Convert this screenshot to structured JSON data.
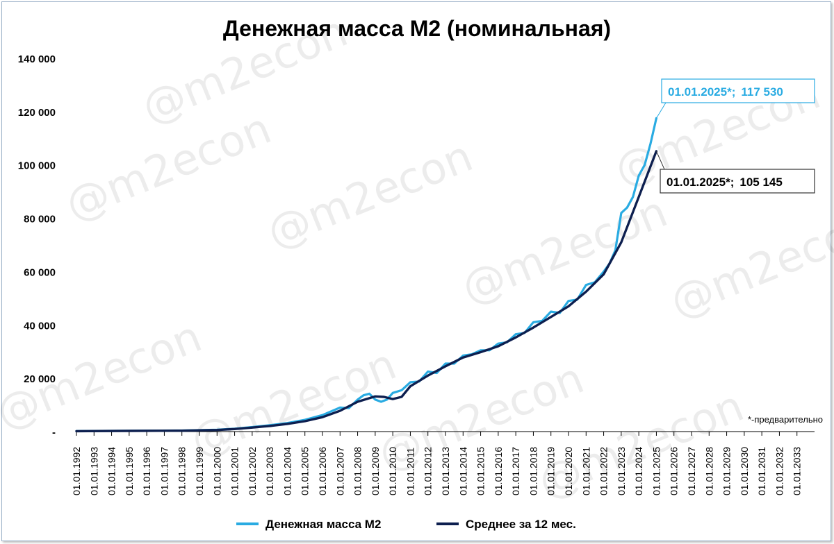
{
  "chart_data": {
    "type": "line",
    "title": "Денежная масса М2 (номинальная)",
    "xlabel": "",
    "ylabel": "",
    "ylim": [
      0,
      140000
    ],
    "y_ticks": [
      "-",
      "20 000",
      "40 000",
      "60 000",
      "80 000",
      "100 000",
      "120 000",
      "140 000"
    ],
    "y_tick_values": [
      0,
      20000,
      40000,
      60000,
      80000,
      100000,
      120000,
      140000
    ],
    "x_ticks": [
      "01.01.1992",
      "01.01.1993",
      "01.01.1994",
      "01.01.1995",
      "01.01.1996",
      "01.01.1997",
      "01.01.1998",
      "01.01.1999",
      "01.01.2000",
      "01.01.2001",
      "01.01.2002",
      "01.01.2003",
      "01.01.2004",
      "01.01.2005",
      "01.01.2006",
      "01.01.2007",
      "01.01.2008",
      "01.01.2009",
      "01.01.2010",
      "01.01.2011",
      "01.01.2012",
      "01.01.2013",
      "01.01.2014",
      "01.01.2015",
      "01.01.2016",
      "01.01.2017",
      "01.01.2018",
      "01.01.2019",
      "01.01.2020",
      "01.01.2021",
      "01.01.2022",
      "01.01.2023",
      "01.01.2024",
      "01.01.2025",
      "01.01.2026",
      "01.01.2027",
      "01.01.2028",
      "01.01.2029",
      "01.01.2030",
      "01.01.2031",
      "01.01.2032",
      "01.01.2033"
    ],
    "x_range": [
      "01.01.1992",
      "01.01.2034"
    ],
    "grid": false,
    "legend_position": "bottom",
    "series": [
      {
        "name": "Денежная масса М2",
        "color": "#29abe2",
        "x": [
          "01.01.1992",
          "01.01.1995",
          "01.01.1998",
          "01.01.2000",
          "01.01.2001",
          "01.01.2002",
          "01.01.2003",
          "01.01.2004",
          "01.01.2005",
          "01.01.2006",
          "01.01.2007",
          "01.01.2007",
          "01.01.2008",
          "01.01.2008",
          "01.01.2008",
          "01.01.2009",
          "01.01.2009",
          "01.01.2009",
          "01.01.2010",
          "01.01.2010",
          "01.01.2011",
          "01.01.2011",
          "01.01.2012",
          "01.01.2012",
          "01.01.2013",
          "01.01.2013",
          "01.01.2014",
          "01.01.2014",
          "01.01.2015",
          "01.01.2015",
          "01.01.2016",
          "01.01.2016",
          "01.01.2017",
          "01.01.2017",
          "01.01.2018",
          "01.01.2018",
          "01.01.2019",
          "01.01.2019",
          "01.01.2020",
          "01.01.2020",
          "01.01.2021",
          "01.01.2021",
          "01.01.2022",
          "01.01.2022",
          "01.01.2022",
          "01.01.2023",
          "01.01.2023",
          "01.01.2023",
          "01.01.2024",
          "01.01.2024",
          "01.01.2024",
          "01.01.2025"
        ],
        "values": [
          200,
          300,
          400,
          700,
          1100,
          1700,
          2400,
          3200,
          4400,
          6200,
          9000,
          8800,
          12000,
          13600,
          14200,
          12000,
          11200,
          12000,
          14500,
          15500,
          18500,
          18800,
          22500,
          22000,
          25500,
          25500,
          28500,
          29000,
          30500,
          30500,
          33000,
          33500,
          36500,
          37000,
          41000,
          41500,
          45000,
          44500,
          49000,
          49500,
          55000,
          56000,
          60000,
          63000,
          68000,
          82000,
          84000,
          88000,
          96000,
          100000,
          108000,
          117530
        ]
      },
      {
        "name": "Среднее за 12 мес.",
        "color": "#0d1f4f",
        "x": [
          "01.01.1992",
          "01.01.1995",
          "01.01.1998",
          "01.01.2000",
          "01.01.2001",
          "01.01.2002",
          "01.01.2003",
          "01.01.2004",
          "01.01.2005",
          "01.01.2006",
          "01.01.2007",
          "01.01.2008",
          "01.01.2009",
          "01.01.2009",
          "01.01.2010",
          "01.01.2010",
          "01.01.2011",
          "01.01.2012",
          "01.01.2013",
          "01.01.2014",
          "01.01.2015",
          "01.01.2016",
          "01.01.2017",
          "01.01.2018",
          "01.01.2019",
          "01.01.2020",
          "01.01.2021",
          "01.01.2022",
          "01.01.2023",
          "01.01.2024",
          "01.01.2025"
        ],
        "values": [
          150,
          250,
          350,
          600,
          950,
          1500,
          2100,
          2900,
          3900,
          5400,
          7800,
          11200,
          13200,
          13000,
          12200,
          13000,
          17000,
          21000,
          24500,
          27800,
          29800,
          32000,
          35300,
          39000,
          43000,
          47000,
          52500,
          59000,
          71000,
          88000,
          105145
        ]
      }
    ],
    "annotations": [
      {
        "series": "Денежная масса М2",
        "date": "01.01.2025*;",
        "value": "117 530"
      },
      {
        "series": "Среднее за 12 мес.",
        "date": "01.01.2025*;",
        "value": "105 145"
      }
    ],
    "note": "*-предварительно",
    "watermark": "@m2econ"
  }
}
